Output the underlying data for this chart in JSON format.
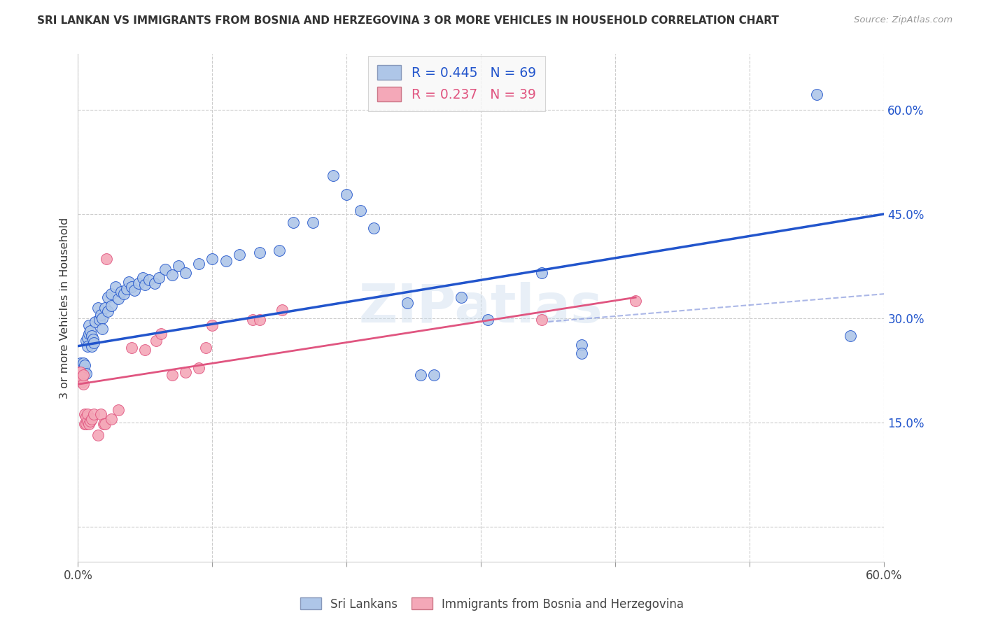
{
  "title": "SRI LANKAN VS IMMIGRANTS FROM BOSNIA AND HERZEGOVINA 3 OR MORE VEHICLES IN HOUSEHOLD CORRELATION CHART",
  "source": "Source: ZipAtlas.com",
  "ylabel": "3 or more Vehicles in Household",
  "legend_label1": "Sri Lankans",
  "legend_label2": "Immigrants from Bosnia and Herzegovina",
  "R1": "0.445",
  "N1": "69",
  "R2": "0.237",
  "N2": "39",
  "color_blue": "#AEC6E8",
  "color_pink": "#F4A8B8",
  "line_blue": "#2255CC",
  "line_pink": "#E05580",
  "line_blue_dash": "#8899DD",
  "watermark": "ZIPatlas",
  "x_range": [
    0.0,
    0.6
  ],
  "y_range": [
    -0.05,
    0.68
  ],
  "y_ticks": [
    0.0,
    0.15,
    0.3,
    0.45,
    0.6
  ],
  "y_tick_labels": [
    "",
    "15.0%",
    "30.0%",
    "45.0%",
    "60.0%"
  ],
  "x_ticks": [
    0.0,
    0.1,
    0.2,
    0.3,
    0.4,
    0.5,
    0.6
  ],
  "x_tick_labels": [
    "0.0%",
    "",
    "",
    "",
    "",
    "",
    "60.0%"
  ],
  "blue_dots": [
    [
      0.001,
      0.22
    ],
    [
      0.002,
      0.225
    ],
    [
      0.002,
      0.235
    ],
    [
      0.003,
      0.22
    ],
    [
      0.004,
      0.225
    ],
    [
      0.004,
      0.235
    ],
    [
      0.005,
      0.222
    ],
    [
      0.005,
      0.232
    ],
    [
      0.006,
      0.22
    ],
    [
      0.006,
      0.268
    ],
    [
      0.007,
      0.272
    ],
    [
      0.007,
      0.26
    ],
    [
      0.008,
      0.278
    ],
    [
      0.008,
      0.29
    ],
    [
      0.009,
      0.282
    ],
    [
      0.01,
      0.275
    ],
    [
      0.01,
      0.26
    ],
    [
      0.011,
      0.27
    ],
    [
      0.012,
      0.265
    ],
    [
      0.013,
      0.295
    ],
    [
      0.015,
      0.315
    ],
    [
      0.016,
      0.298
    ],
    [
      0.017,
      0.305
    ],
    [
      0.018,
      0.3
    ],
    [
      0.018,
      0.285
    ],
    [
      0.02,
      0.315
    ],
    [
      0.022,
      0.31
    ],
    [
      0.022,
      0.33
    ],
    [
      0.025,
      0.318
    ],
    [
      0.025,
      0.335
    ],
    [
      0.028,
      0.345
    ],
    [
      0.03,
      0.328
    ],
    [
      0.032,
      0.338
    ],
    [
      0.034,
      0.335
    ],
    [
      0.036,
      0.342
    ],
    [
      0.038,
      0.352
    ],
    [
      0.04,
      0.345
    ],
    [
      0.042,
      0.34
    ],
    [
      0.045,
      0.35
    ],
    [
      0.048,
      0.358
    ],
    [
      0.05,
      0.348
    ],
    [
      0.053,
      0.355
    ],
    [
      0.057,
      0.35
    ],
    [
      0.06,
      0.358
    ],
    [
      0.065,
      0.37
    ],
    [
      0.07,
      0.362
    ],
    [
      0.075,
      0.375
    ],
    [
      0.08,
      0.365
    ],
    [
      0.09,
      0.378
    ],
    [
      0.1,
      0.385
    ],
    [
      0.11,
      0.382
    ],
    [
      0.12,
      0.392
    ],
    [
      0.135,
      0.395
    ],
    [
      0.15,
      0.398
    ],
    [
      0.16,
      0.438
    ],
    [
      0.175,
      0.438
    ],
    [
      0.19,
      0.505
    ],
    [
      0.2,
      0.478
    ],
    [
      0.21,
      0.455
    ],
    [
      0.22,
      0.43
    ],
    [
      0.245,
      0.322
    ],
    [
      0.255,
      0.218
    ],
    [
      0.265,
      0.218
    ],
    [
      0.285,
      0.33
    ],
    [
      0.305,
      0.298
    ],
    [
      0.345,
      0.365
    ],
    [
      0.375,
      0.262
    ],
    [
      0.375,
      0.25
    ],
    [
      0.55,
      0.622
    ],
    [
      0.575,
      0.275
    ]
  ],
  "pink_dots": [
    [
      0.001,
      0.218
    ],
    [
      0.001,
      0.222
    ],
    [
      0.002,
      0.212
    ],
    [
      0.002,
      0.222
    ],
    [
      0.003,
      0.208
    ],
    [
      0.003,
      0.215
    ],
    [
      0.004,
      0.205
    ],
    [
      0.004,
      0.218
    ],
    [
      0.005,
      0.148
    ],
    [
      0.005,
      0.162
    ],
    [
      0.006,
      0.148
    ],
    [
      0.006,
      0.158
    ],
    [
      0.007,
      0.152
    ],
    [
      0.007,
      0.162
    ],
    [
      0.008,
      0.148
    ],
    [
      0.009,
      0.152
    ],
    [
      0.01,
      0.155
    ],
    [
      0.012,
      0.162
    ],
    [
      0.015,
      0.132
    ],
    [
      0.017,
      0.162
    ],
    [
      0.019,
      0.148
    ],
    [
      0.02,
      0.148
    ],
    [
      0.021,
      0.385
    ],
    [
      0.025,
      0.155
    ],
    [
      0.03,
      0.168
    ],
    [
      0.04,
      0.258
    ],
    [
      0.05,
      0.255
    ],
    [
      0.058,
      0.268
    ],
    [
      0.062,
      0.278
    ],
    [
      0.07,
      0.218
    ],
    [
      0.08,
      0.222
    ],
    [
      0.09,
      0.228
    ],
    [
      0.095,
      0.258
    ],
    [
      0.1,
      0.29
    ],
    [
      0.13,
      0.298
    ],
    [
      0.135,
      0.298
    ],
    [
      0.152,
      0.312
    ],
    [
      0.345,
      0.298
    ],
    [
      0.415,
      0.325
    ]
  ],
  "blue_line": {
    "x0": 0.0,
    "y0": 0.26,
    "x1": 0.6,
    "y1": 0.45
  },
  "pink_line_solid": {
    "x0": 0.0,
    "y0": 0.205,
    "x1": 0.175,
    "y1": 0.285
  },
  "pink_line_full": {
    "x0": 0.0,
    "y0": 0.205,
    "x1": 0.415,
    "y1": 0.33
  },
  "blue_dash_line": {
    "x0": 0.35,
    "y0": 0.295,
    "x1": 0.6,
    "y1": 0.335
  }
}
